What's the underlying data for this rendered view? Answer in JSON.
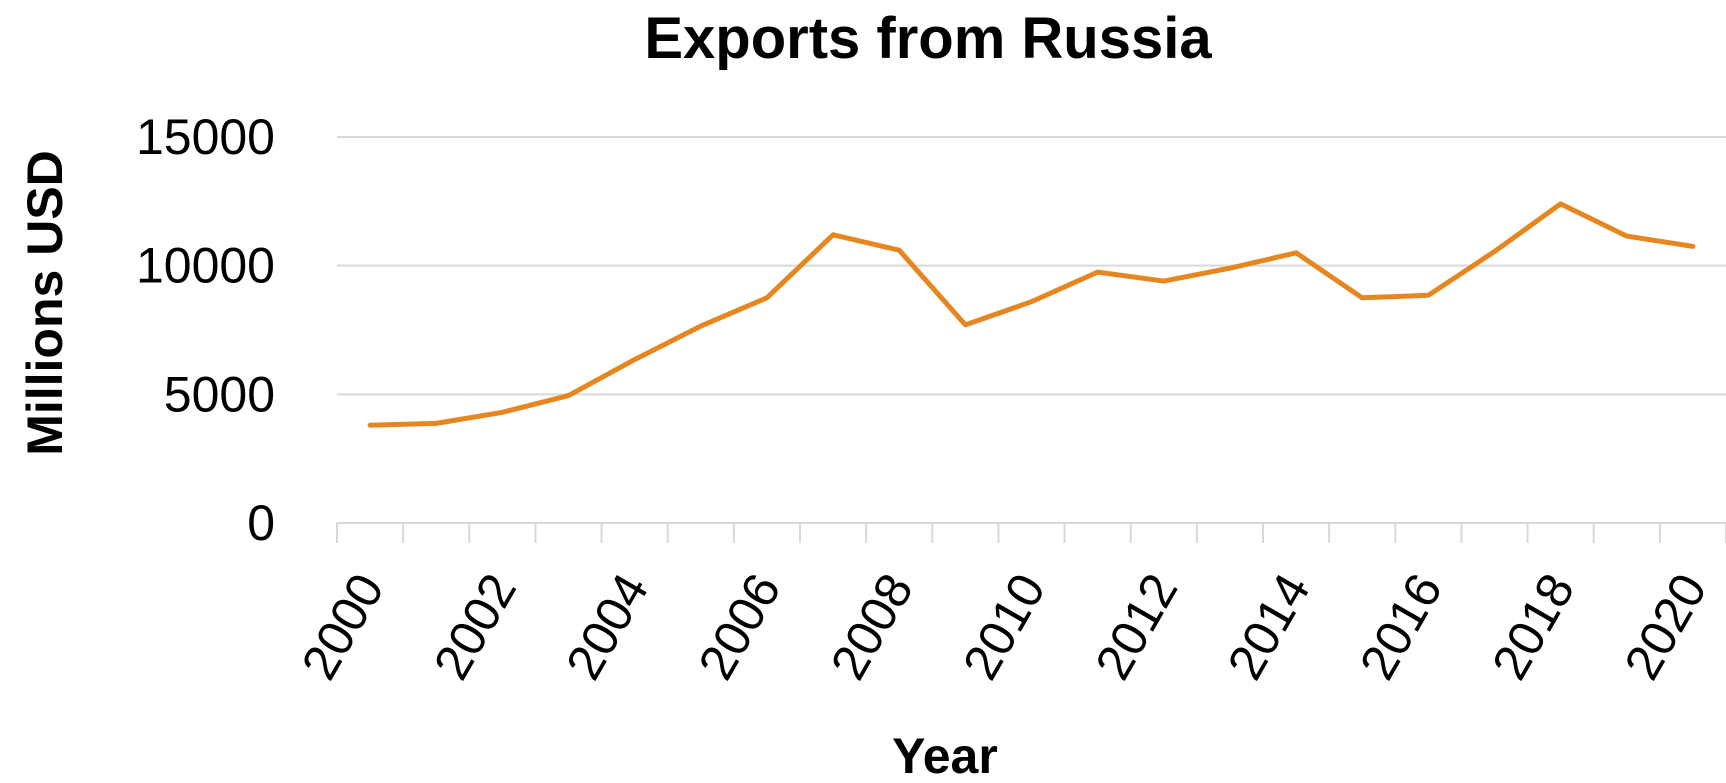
{
  "chart_data": {
    "type": "line",
    "title": "Exports from Russia",
    "xlabel": "Year",
    "ylabel": "Millions USD",
    "x": [
      2000,
      2001,
      2002,
      2003,
      2004,
      2005,
      2006,
      2007,
      2008,
      2009,
      2010,
      2011,
      2012,
      2013,
      2014,
      2015,
      2016,
      2017,
      2018,
      2019,
      2020
    ],
    "x_tick_labels": [
      "2000",
      "2002",
      "2004",
      "2006",
      "2008",
      "2010",
      "2012",
      "2014",
      "2016",
      "2018",
      "2020"
    ],
    "y_tick_labels": [
      "0",
      "5000",
      "10000",
      "15000"
    ],
    "y_ticks": [
      0,
      5000,
      10000,
      15000
    ],
    "ylim": [
      0,
      15000
    ],
    "grid": true,
    "legend": "none",
    "series": [
      {
        "color": "#e6861f",
        "values": [
          3800,
          3870,
          4300,
          4950,
          6350,
          7650,
          8750,
          11200,
          10600,
          7700,
          8600,
          9750,
          9400,
          9900,
          10500,
          8750,
          8850,
          10550,
          12400,
          11150,
          10750
        ]
      }
    ]
  }
}
